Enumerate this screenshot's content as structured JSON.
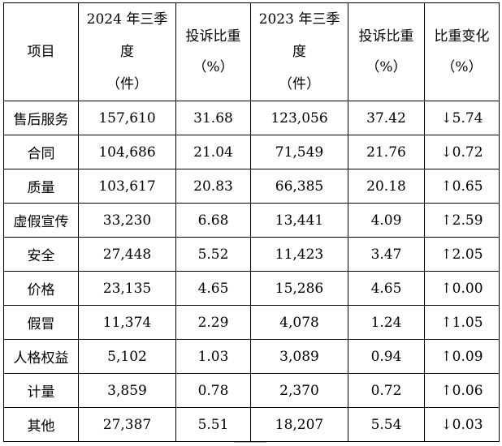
{
  "header": {
    "item": "项目",
    "y2024_lines": [
      "2024 年三季",
      "度",
      "（件）"
    ],
    "share_2024_lines": [
      "投诉比重",
      "（%）"
    ],
    "y2023_lines": [
      "2023 年三季",
      "度",
      "（件）"
    ],
    "share_2023_lines": [
      "投诉比重",
      "（%）"
    ],
    "change_lines": [
      "比重变化",
      "（%）"
    ]
  },
  "rows": [
    {
      "item": "售后服务",
      "c2024": "157,610",
      "s2024": "31.68",
      "c2023": "123,056",
      "s2023": "37.42",
      "change": "↓5.74"
    },
    {
      "item": "合同",
      "c2024": "104,686",
      "s2024": "21.04",
      "c2023": "71,549",
      "s2023": "21.76",
      "change": "↓0.72"
    },
    {
      "item": "质量",
      "c2024": "103,617",
      "s2024": "20.83",
      "c2023": "66,385",
      "s2023": "20.18",
      "change": "↑0.65"
    },
    {
      "item": "虚假宣传",
      "c2024": "33,230",
      "s2024": "6.68",
      "c2023": "13,441",
      "s2023": "4.09",
      "change": "↑2.59"
    },
    {
      "item": "安全",
      "c2024": "27,448",
      "s2024": "5.52",
      "c2023": "11,423",
      "s2023": "3.47",
      "change": "↑2.05"
    },
    {
      "item": "价格",
      "c2024": "23,135",
      "s2024": "4.65",
      "c2023": "15,286",
      "s2023": "4.65",
      "change": "↑0.00"
    },
    {
      "item": "假冒",
      "c2024": "11,374",
      "s2024": "2.29",
      "c2023": "4,078",
      "s2023": "1.24",
      "change": "↑1.05"
    },
    {
      "item": "人格权益",
      "c2024": "5,102",
      "s2024": "1.03",
      "c2023": "3,089",
      "s2023": "0.94",
      "change": "↑0.09"
    },
    {
      "item": "计量",
      "c2024": "3,859",
      "s2024": "0.78",
      "c2023": "2,370",
      "s2023": "0.72",
      "change": "↑0.06"
    },
    {
      "item": "其他",
      "c2024": "27,387",
      "s2024": "5.51",
      "c2023": "18,207",
      "s2023": "5.54",
      "change": "↓0.03"
    }
  ]
}
